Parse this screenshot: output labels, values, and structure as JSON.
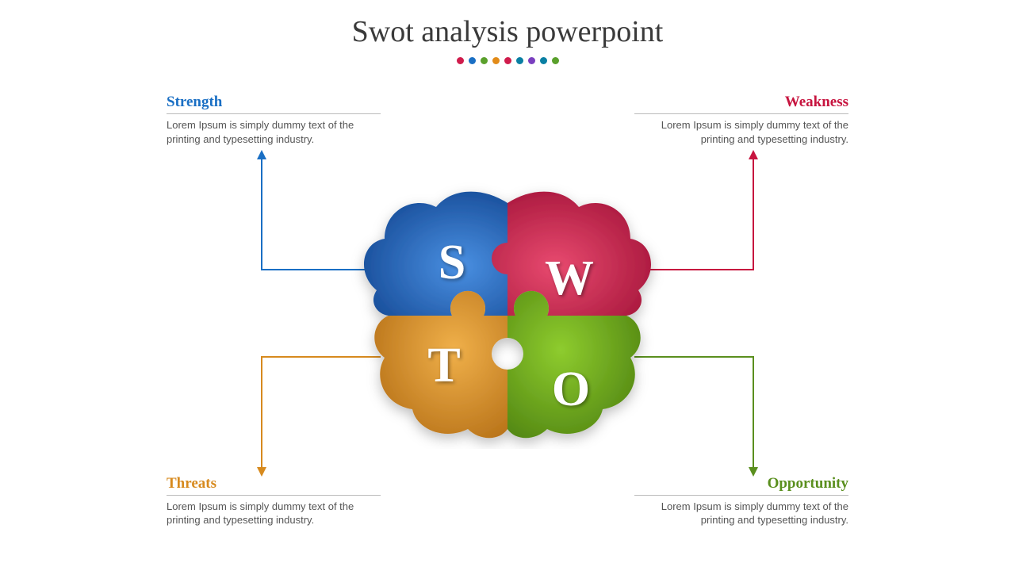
{
  "title": "Swot analysis powerpoint",
  "dot_colors": [
    "#d01c4c",
    "#1a6fc4",
    "#5aa02c",
    "#e28b18",
    "#d01c4c",
    "#0a7fa3",
    "#7a3fbf",
    "#0a7fa3",
    "#5aa02c"
  ],
  "quadrants": {
    "strength": {
      "label": "Strength",
      "body": "Lorem Ipsum is simply dummy text of the printing and typesetting industry.",
      "color": "#1a6fc4"
    },
    "weakness": {
      "label": "Weakness",
      "body": "Lorem Ipsum is simply dummy text of the printing and typesetting industry.",
      "color": "#c7143f"
    },
    "threats": {
      "label": "Threats",
      "body": "Lorem Ipsum is simply dummy text of the printing and typesetting industry.",
      "color": "#d78a1e"
    },
    "opportunity": {
      "label": "Opportunity",
      "body": "Lorem Ipsum is simply dummy text of the printing and typesetting industry.",
      "color": "#5a8f1e"
    }
  },
  "pieces": {
    "s": {
      "letter": "S",
      "fill_light": "#4a90e2",
      "fill_dark": "#0d3f8a"
    },
    "w": {
      "letter": "W",
      "fill_light": "#e84a6f",
      "fill_dark": "#9c0e33"
    },
    "t": {
      "letter": "T",
      "fill_light": "#f0b04a",
      "fill_dark": "#b06a12"
    },
    "o": {
      "letter": "O",
      "fill_light": "#8ecc2e",
      "fill_dark": "#4a7d0f"
    }
  },
  "body_text_color": "#555555",
  "background": "#ffffff"
}
